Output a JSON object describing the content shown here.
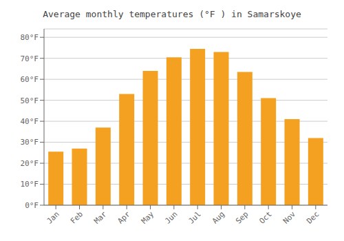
{
  "chart_data": {
    "type": "bar",
    "title": "Average monthly temperatures (°F ) in Samarskoye",
    "categories": [
      "Jan",
      "Feb",
      "Mar",
      "Apr",
      "May",
      "Jun",
      "Jul",
      "Aug",
      "Sep",
      "Oct",
      "Nov",
      "Dec"
    ],
    "values": [
      25.5,
      27.0,
      37.0,
      53.0,
      64.0,
      70.5,
      74.5,
      73.0,
      63.5,
      51.0,
      41.0,
      32.0
    ],
    "color": "#F4A020",
    "ylim": [
      0,
      84
    ],
    "yticks": [
      {
        "value": 0,
        "label": "0°F"
      },
      {
        "value": 10,
        "label": "10°F"
      },
      {
        "value": 20,
        "label": "20°F"
      },
      {
        "value": 30,
        "label": "30°F"
      },
      {
        "value": 40,
        "label": "40°F"
      },
      {
        "value": 50,
        "label": "50°F"
      },
      {
        "value": 60,
        "label": "60°F"
      },
      {
        "value": 70,
        "label": "70°F"
      },
      {
        "value": 80,
        "label": "80°F"
      }
    ],
    "grid": true
  }
}
